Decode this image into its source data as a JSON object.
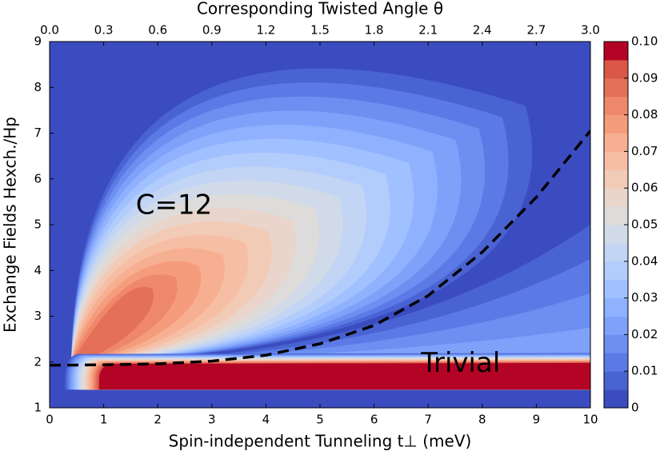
{
  "chart_data": {
    "type": "contour",
    "x_label": "Spin-independent Tunneling t⊥ (meV)",
    "y_label": "Exchange Fields Hexch./Hp",
    "top_label": "Corresponding Twisted Angle θ",
    "xlim": [
      0,
      10
    ],
    "xticks": [
      0,
      1,
      2,
      3,
      4,
      5,
      6,
      7,
      8,
      9,
      10
    ],
    "ylim": [
      1,
      9
    ],
    "yticks": [
      1,
      2,
      3,
      4,
      5,
      6,
      7,
      8,
      9
    ],
    "top_lim": [
      0,
      3
    ],
    "top_ticks": [
      {
        "value": 0,
        "label": "0.0"
      },
      0.3,
      0.6,
      0.9,
      1.2,
      1.5,
      1.8,
      2.1,
      2.4,
      2.7,
      {
        "value": 3,
        "label": "3.0"
      }
    ],
    "colorbar": {
      "lim": [
        0,
        0.1
      ],
      "ticks": [
        0,
        0.01,
        0.02,
        0.03,
        0.04,
        0.05,
        0.06,
        0.07,
        0.08,
        0.09,
        {
          "value": 0.1,
          "label": "0.10"
        }
      ],
      "colors": [
        "#3b4cc0",
        "#4a63d3",
        "#5b7ae5",
        "#6c8ff1",
        "#7ea1fa",
        "#8fb1fe",
        "#a1c0ff",
        "#b2ccfb",
        "#c3d5f4",
        "#d1dae9",
        "#dedcdb",
        "#e9d5cb",
        "#f2cbb7",
        "#f6bea4",
        "#f7af91",
        "#f59c7d",
        "#ef886b",
        "#e57058",
        "#d95847",
        "#b40426"
      ]
    },
    "annotations": [
      "C=12",
      "Trivial"
    ],
    "boundary": {
      "color": "#000000",
      "x": [
        0,
        1,
        2,
        3,
        4,
        5,
        6,
        7,
        8,
        9,
        10
      ],
      "y": [
        1.93,
        1.94,
        1.96,
        2.02,
        2.15,
        2.4,
        2.8,
        3.45,
        4.4,
        5.6,
        7.05
      ]
    }
  }
}
